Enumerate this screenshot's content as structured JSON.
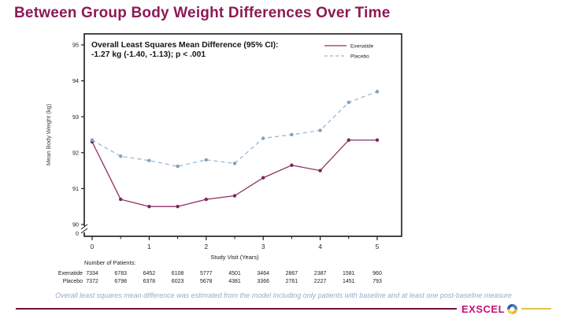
{
  "slide": {
    "title": "Between Group Body Weight Differences Over Time",
    "footnote": "Overall least squares mean difference was estimated from the model including only patients with baseline and at least one post-baseline measure"
  },
  "footer": {
    "logo_text": "EXSCEL"
  },
  "colors": {
    "title": "#8c1a56",
    "footnote": "#97abc9",
    "rule_left": "#6e1237",
    "rule_right": "#e2c347",
    "logo": "#c2127c",
    "axis": "#1a1a1a",
    "exenatide": "#8e3063",
    "exenatide_marker": "#7d2557",
    "placebo": "#9db8d2",
    "placebo_marker": "#7fa0bf"
  },
  "chart_data": {
    "type": "line",
    "title": "",
    "xlabel": "Study Visit (Years)",
    "ylabel": "Mean Body Weight (kg)",
    "annotation_lines": [
      "Overall Least Squares Mean Difference (95% CI):",
      "-1.27 kg (-1.40, -1.13); p < .001"
    ],
    "x": [
      0,
      0.5,
      1,
      1.5,
      2,
      2.5,
      3,
      3.5,
      4,
      4.5,
      5
    ],
    "series": [
      {
        "name": "Exenatide",
        "style": "solid",
        "color": "#8e3063",
        "marker_color": "#7d2557",
        "values": [
          92.3,
          90.7,
          90.5,
          90.5,
          90.7,
          90.8,
          91.3,
          91.65,
          91.5,
          92.35,
          92.35
        ]
      },
      {
        "name": "Placebo",
        "style": "dashed",
        "color": "#9db8d2",
        "marker_color": "#7fa0bf",
        "values": [
          92.35,
          91.9,
          91.78,
          91.62,
          91.8,
          91.7,
          92.4,
          92.5,
          92.62,
          93.4,
          93.7
        ]
      }
    ],
    "yticks": [
      "95",
      "94",
      "93",
      "92",
      "91",
      "90"
    ],
    "xticks": [
      "0",
      "1",
      "2",
      "3",
      "4",
      "5"
    ],
    "x_minor_ticks": [
      0.5,
      1.5,
      2.5,
      3.5,
      4.5
    ],
    "ylim": [
      90,
      95
    ],
    "axis_break_label": "0",
    "grid": false,
    "legend_position": "top-right"
  },
  "patients_table": {
    "label": "Number of Patients:",
    "rows": [
      {
        "name": "Exenatide",
        "counts": [
          "7334",
          "6783",
          "6452",
          "6108",
          "5777",
          "4501",
          "3464",
          "2867",
          "2387",
          "1581",
          "960"
        ]
      },
      {
        "name": "Placebo",
        "counts": [
          "7372",
          "6798",
          "6378",
          "6023",
          "5678",
          "4381",
          "3366",
          "2761",
          "2227",
          "1451",
          "793"
        ]
      }
    ]
  }
}
